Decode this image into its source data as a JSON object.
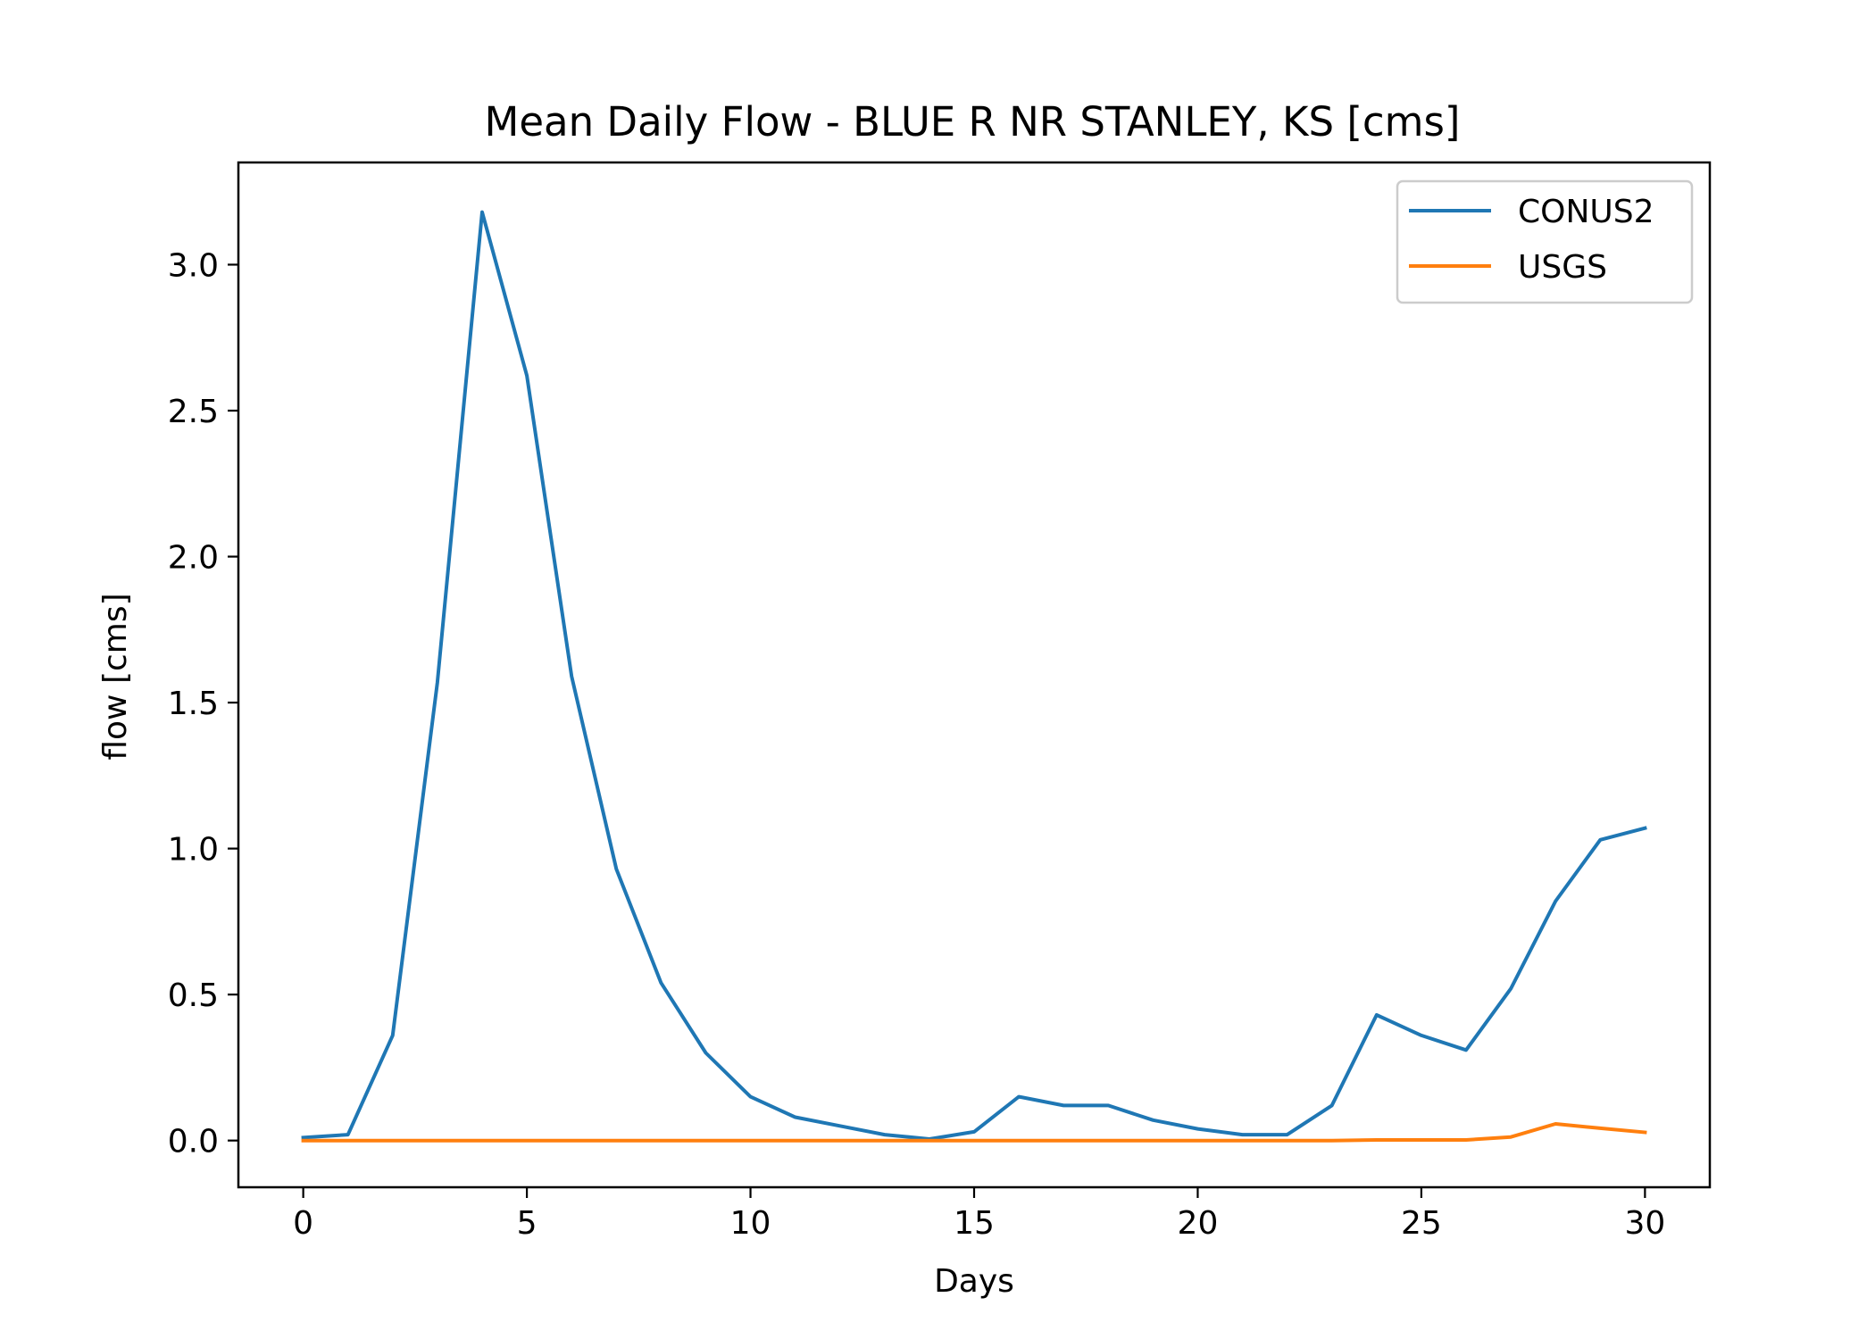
{
  "chart_data": {
    "type": "line",
    "title": "Mean Daily Flow - BLUE R NR STANLEY, KS [cms]",
    "xlabel": "Days",
    "ylabel": "flow [cms]",
    "xlim": [
      -1.45,
      31.45
    ],
    "ylim": [
      -0.16,
      3.35
    ],
    "xticks": [
      0,
      5,
      10,
      15,
      20,
      25,
      30
    ],
    "yticks": [
      0.0,
      0.5,
      1.0,
      1.5,
      2.0,
      2.5,
      3.0
    ],
    "xtick_labels": [
      "0",
      "5",
      "10",
      "15",
      "20",
      "25",
      "30"
    ],
    "ytick_labels": [
      "0.0",
      "0.5",
      "1.0",
      "1.5",
      "2.0",
      "2.5",
      "3.0"
    ],
    "grid": false,
    "legend_position": "top-right",
    "x": [
      0,
      1,
      2,
      3,
      4,
      5,
      6,
      7,
      8,
      9,
      10,
      11,
      12,
      13,
      14,
      15,
      16,
      17,
      18,
      19,
      20,
      21,
      22,
      23,
      24,
      25,
      26,
      27,
      28,
      29,
      30
    ],
    "series": [
      {
        "name": "CONUS2",
        "color": "#1f77b4",
        "values": [
          0.01,
          0.02,
          0.36,
          1.57,
          3.18,
          2.62,
          1.59,
          0.93,
          0.54,
          0.3,
          0.15,
          0.08,
          0.05,
          0.02,
          0.005,
          0.03,
          0.15,
          0.12,
          0.12,
          0.07,
          0.04,
          0.02,
          0.02,
          0.12,
          0.43,
          0.36,
          0.31,
          0.52,
          0.82,
          1.03,
          1.07
        ]
      },
      {
        "name": "USGS",
        "color": "#ff7f0e",
        "values": [
          0,
          0,
          0,
          0,
          0,
          0,
          0,
          0,
          0,
          0,
          0,
          0,
          0,
          0,
          0,
          0,
          0,
          0,
          0,
          0,
          0,
          0,
          0,
          0,
          0.002,
          0.002,
          0.002,
          0.012,
          0.057,
          0.042,
          0.028
        ]
      }
    ]
  }
}
